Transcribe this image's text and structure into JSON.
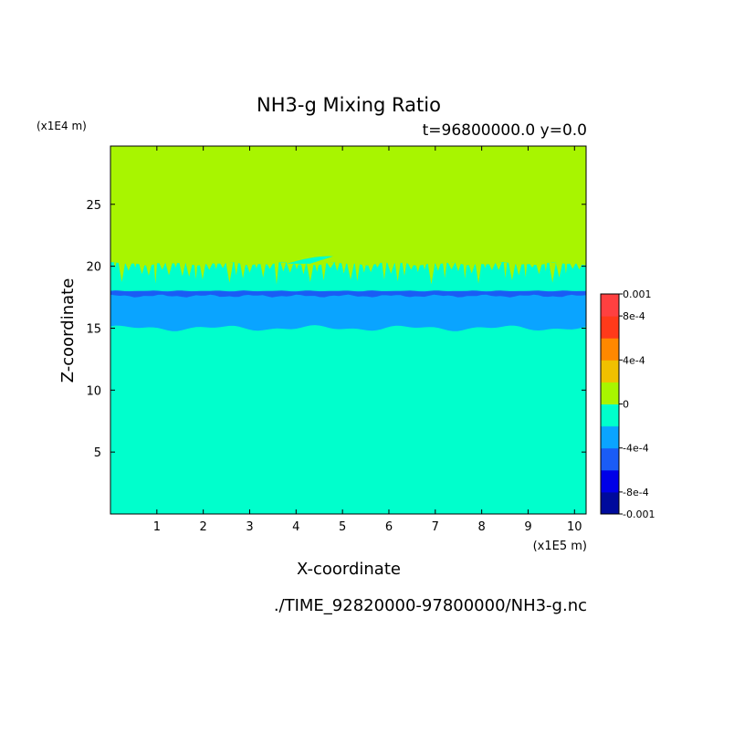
{
  "chart_data": {
    "type": "heatmap",
    "title": "NH3-g Mixing Ratio",
    "subtitle": "t=96800000.0 y=0.0",
    "xlabel": "X-coordinate",
    "ylabel": "Z-coordinate",
    "x_unit": "(x1E5 m)",
    "y_unit": "(x1E4 m)",
    "source_file": "./TIME_92820000-97800000/NH3-g.nc",
    "xlim": [
      0,
      10.25
    ],
    "ylim": [
      0,
      29.7
    ],
    "x_ticks": [
      1,
      2,
      3,
      4,
      5,
      6,
      7,
      8,
      9,
      10
    ],
    "y_ticks": [
      5,
      10,
      15,
      20,
      25
    ],
    "x_tick_labels": [
      "1",
      "2",
      "3",
      "4",
      "5",
      "6",
      "7",
      "8",
      "9",
      "10"
    ],
    "y_tick_labels": [
      "5",
      "10",
      "15",
      "20",
      "25"
    ],
    "colorbar": {
      "range": [
        -0.001,
        0.001
      ],
      "level_colors": [
        "#000a9c",
        "#0000e8",
        "#1a5cf5",
        "#0aa4ff",
        "#00ffcc",
        "#a8f500",
        "#f0c000",
        "#ff8800",
        "#ff3a1a",
        "#ff4040"
      ],
      "tick_labels": [
        "0.001",
        "8e-4",
        "4e-4",
        "0",
        "-4e-4",
        "-8e-4",
        "-0.001"
      ],
      "tick_values": [
        0.001,
        0.0008,
        0.0004,
        0,
        -0.0004,
        -0.0008,
        -0.001
      ]
    },
    "field_bands": [
      {
        "z_bottom": 0,
        "z_top": 15.0,
        "level": "-4e-4 to 0",
        "color": "#00ffcc"
      },
      {
        "z_bottom": 15.0,
        "z_top": 18.0,
        "level": "-6e-4 to -4e-4",
        "color": "#0aa4ff"
      },
      {
        "z_bottom": 17.6,
        "z_top": 18.0,
        "level": "-8e-4 to -6e-4",
        "color": "#1a5cf5"
      },
      {
        "z_bottom": 18.0,
        "z_top": 20.2,
        "level": "-4e-4 to 0",
        "color": "#00ffcc"
      },
      {
        "z_bottom": 20.2,
        "z_top": 29.7,
        "level": "0 to 2e-4",
        "color": "#a8f500"
      }
    ]
  }
}
